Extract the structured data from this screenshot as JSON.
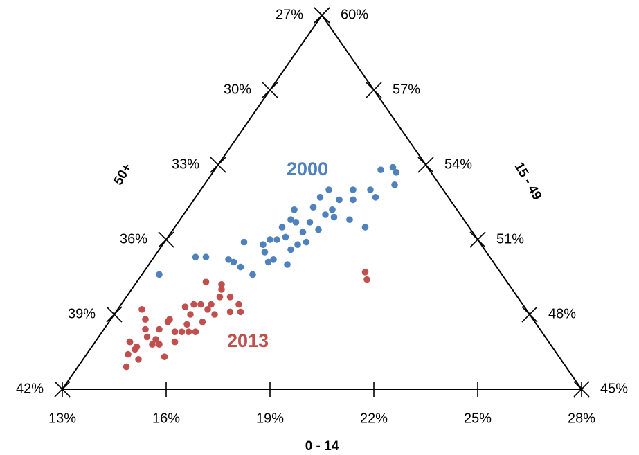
{
  "chart_data": {
    "type": "ternary",
    "axes": [
      {
        "label": "0 - 14",
        "lim": [
          13,
          28
        ],
        "ticks": [
          {
            "value": 13,
            "label": "13%"
          },
          {
            "value": 16,
            "label": "16%"
          },
          {
            "value": 19,
            "label": "19%"
          },
          {
            "value": 22,
            "label": "22%"
          },
          {
            "value": 25,
            "label": "25%"
          },
          {
            "value": 28,
            "label": "28%"
          }
        ]
      },
      {
        "label": "15 - 49",
        "lim": [
          45,
          60
        ],
        "ticks": [
          {
            "value": 45,
            "label": "45%"
          },
          {
            "value": 48,
            "label": "48%"
          },
          {
            "value": 51,
            "label": "51%"
          },
          {
            "value": 54,
            "label": "54%"
          },
          {
            "value": 57,
            "label": "57%"
          },
          {
            "value": 60,
            "label": "60%"
          }
        ]
      },
      {
        "label": "50+",
        "lim": [
          27,
          42
        ],
        "ticks": [
          {
            "value": 27,
            "label": "27%"
          },
          {
            "value": 30,
            "label": "30%"
          },
          {
            "value": 33,
            "label": "33%"
          },
          {
            "value": 36,
            "label": "36%"
          },
          {
            "value": 39,
            "label": "39%"
          },
          {
            "value": 42,
            "label": "42%"
          }
        ]
      }
    ],
    "series": [
      {
        "name": "2000",
        "color": "#4f81bd",
        "values_0_14": [
          17.8,
          18.1,
          18.3,
          18.5,
          17.9,
          18.2,
          17.4,
          17.6,
          16.7,
          16.6,
          17.2,
          17.2,
          17.1,
          16.6,
          16.1,
          16.2,
          16.1,
          16.4,
          16.8,
          16.8,
          16.4,
          16.2,
          16.0,
          15.9,
          15.3,
          16.1,
          16.5,
          17.0,
          16.4,
          15.7,
          15.4,
          15.2,
          16.2,
          14.2,
          14.5,
          13.5,
          18.5,
          17.9,
          17.4,
          17.2,
          17.1,
          16.9,
          16.8
        ],
        "values_15_49": [
          53.8,
          53.9,
          53.7,
          53.2,
          53.0,
          52.7,
          53.0,
          52.6,
          53.0,
          52.7,
          52.6,
          52.2,
          52.0,
          52.3,
          52.2,
          51.8,
          51.5,
          51.7,
          51.7,
          51.3,
          51.1,
          51.0,
          51.0,
          50.8,
          50.9,
          50.5,
          50.2,
          50.0,
          50.1,
          49.9,
          50.1,
          50.2,
          49.6,
          50.3,
          50.3,
          49.6,
          51.5,
          51.8,
          51.9,
          51.4,
          50.9,
          50.8,
          50.6
        ],
        "values_50plus": [
          28.4,
          28.0,
          28.0,
          28.3,
          29.1,
          29.1,
          29.6,
          29.8,
          30.3,
          30.7,
          30.2,
          30.6,
          30.9,
          31.1,
          31.7,
          32.0,
          32.4,
          31.9,
          31.5,
          31.9,
          32.5,
          32.8,
          33.0,
          33.3,
          33.8,
          33.4,
          33.3,
          33.0,
          33.5,
          34.4,
          34.5,
          34.6,
          34.2,
          35.5,
          35.2,
          36.9,
          30.0,
          30.3,
          30.7,
          31.4,
          32.0,
          32.3,
          32.6
        ]
      },
      {
        "name": "2013",
        "color": "#c0504d",
        "values_0_14": [
          13.7,
          14.0,
          14.2,
          14.0,
          14.3,
          14.2,
          14.4,
          14.6,
          14.7,
          14.7,
          14.6,
          14.7,
          14.7,
          15.3,
          15.3,
          15.3,
          15.3,
          14.9,
          15.1,
          15.3,
          15.6,
          15.0,
          15.5,
          15.6,
          16.0,
          16.4,
          16.6,
          16.3,
          15.9,
          15.7,
          15.7,
          15.5,
          15.1,
          14.9,
          14.4,
          14.3,
          14.0,
          15.7,
          15.6,
          15.2,
          19.4,
          19.6
        ],
        "values_15_49": [
          48.2,
          47.8,
          47.4,
          46.9,
          46.6,
          46.4,
          45.9,
          46.2,
          46.8,
          47.0,
          47.4,
          47.7,
          47.8,
          46.3,
          46.9,
          47.3,
          47.6,
          48.3,
          48.4,
          48.4,
          48.2,
          49.3,
          49.2,
          49.0,
          48.7,
          48.4,
          48.1,
          48.1,
          48.0,
          47.7,
          47.3,
          47.3,
          47.3,
          46.8,
          47.1,
          46.7,
          46.9,
          48.7,
          48.4,
          48.0,
          49.7,
          49.4
        ],
        "values_50plus": [
          38.1,
          38.2,
          38.4,
          39.1,
          39.1,
          39.4,
          39.7,
          39.2,
          38.5,
          38.3,
          38.0,
          37.6,
          37.5,
          38.4,
          37.8,
          37.4,
          37.1,
          36.8,
          36.5,
          36.3,
          36.2,
          35.7,
          35.3,
          35.4,
          35.3,
          35.2,
          35.3,
          35.6,
          36.1,
          36.6,
          37.0,
          37.2,
          37.6,
          38.3,
          38.5,
          39.0,
          39.1,
          35.6,
          36.0,
          36.8,
          30.9,
          31.0
        ]
      }
    ]
  }
}
